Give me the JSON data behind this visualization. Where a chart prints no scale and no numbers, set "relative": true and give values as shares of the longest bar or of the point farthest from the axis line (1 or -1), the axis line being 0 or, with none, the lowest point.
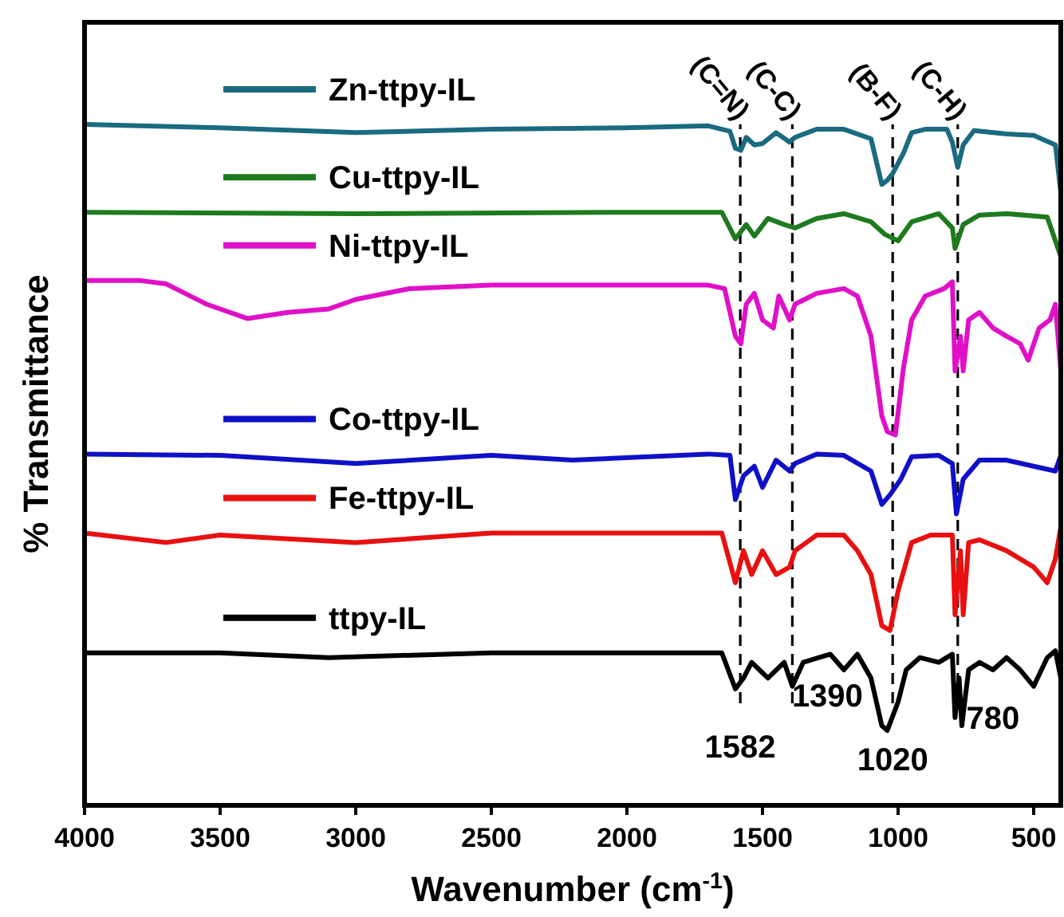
{
  "chart_data": {
    "type": "line",
    "relative": true,
    "xlabel": "Wavenumber (cm$^{-1}$)",
    "ylabel": "% Transmittance",
    "xlim": [
      4000,
      400
    ],
    "xticks": [
      4000,
      3500,
      3000,
      2500,
      2000,
      1500,
      1000,
      500
    ],
    "legend": "top left",
    "grid": false,
    "marker": "none",
    "line_style": "solid",
    "tick_labels": "x",
    "series": [
      {
        "name": "Zn-ttpy-IL",
        "color": "#1a6a80",
        "x": [
          4000,
          3500,
          3000,
          2500,
          2000,
          1700,
          1620,
          1600,
          1580,
          1560,
          1530,
          1500,
          1450,
          1400,
          1380,
          1300,
          1200,
          1100,
          1060,
          1040,
          1020,
          980,
          950,
          900,
          820,
          800,
          780,
          760,
          720,
          600,
          500,
          420,
          400
        ],
        "values": [
          1.0,
          0.995,
          0.988,
          0.993,
          0.995,
          0.998,
          0.99,
          0.965,
          0.962,
          0.981,
          0.97,
          0.972,
          0.988,
          0.974,
          0.981,
          0.993,
          0.993,
          0.979,
          0.912,
          0.918,
          0.928,
          0.958,
          0.988,
          0.993,
          0.993,
          0.974,
          0.937,
          0.97,
          0.991,
          0.986,
          0.984,
          0.97,
          0.9
        ]
      },
      {
        "name": "Cu-ttpy-IL",
        "color": "#1e7a1e",
        "x": [
          4000,
          3000,
          2000,
          1650,
          1600,
          1560,
          1530,
          1480,
          1420,
          1380,
          1300,
          1200,
          1100,
          1050,
          1000,
          950,
          850,
          800,
          790,
          760,
          700,
          600,
          450,
          400
        ],
        "values": [
          0.871,
          0.869,
          0.871,
          0.871,
          0.832,
          0.853,
          0.836,
          0.862,
          0.853,
          0.848,
          0.862,
          0.869,
          0.857,
          0.839,
          0.829,
          0.857,
          0.869,
          0.848,
          0.818,
          0.853,
          0.867,
          0.869,
          0.864,
          0.806
        ]
      },
      {
        "name": "Ni-ttpy-IL",
        "color": "#e010c8",
        "x": [
          4000,
          3800,
          3700,
          3550,
          3400,
          3250,
          3100,
          3000,
          2800,
          2500,
          2000,
          1700,
          1640,
          1600,
          1580,
          1560,
          1530,
          1500,
          1460,
          1440,
          1400,
          1380,
          1300,
          1200,
          1150,
          1100,
          1060,
          1040,
          1010,
          980,
          950,
          900,
          830,
          800,
          790,
          770,
          760,
          740,
          700,
          650,
          600,
          550,
          520,
          480,
          440,
          420,
          400
        ],
        "values": [
          0.771,
          0.771,
          0.766,
          0.736,
          0.715,
          0.724,
          0.729,
          0.743,
          0.759,
          0.764,
          0.764,
          0.764,
          0.759,
          0.689,
          0.678,
          0.736,
          0.752,
          0.713,
          0.701,
          0.748,
          0.713,
          0.736,
          0.752,
          0.759,
          0.748,
          0.689,
          0.572,
          0.549,
          0.544,
          0.643,
          0.713,
          0.748,
          0.759,
          0.769,
          0.638,
          0.689,
          0.638,
          0.713,
          0.724,
          0.701,
          0.689,
          0.678,
          0.654,
          0.701,
          0.713,
          0.736,
          0.638
        ]
      },
      {
        "name": "Co-ttpy-IL",
        "color": "#1010c8",
        "x": [
          4000,
          3500,
          3000,
          2500,
          2200,
          1700,
          1620,
          1600,
          1570,
          1530,
          1500,
          1450,
          1400,
          1380,
          1300,
          1200,
          1100,
          1060,
          1030,
          990,
          950,
          850,
          800,
          785,
          760,
          700,
          600,
          500,
          420,
          400
        ],
        "values": [
          0.516,
          0.514,
          0.502,
          0.514,
          0.507,
          0.516,
          0.514,
          0.449,
          0.484,
          0.498,
          0.467,
          0.507,
          0.491,
          0.502,
          0.516,
          0.514,
          0.491,
          0.442,
          0.456,
          0.479,
          0.512,
          0.514,
          0.502,
          0.428,
          0.479,
          0.507,
          0.507,
          0.498,
          0.491,
          0.514
        ]
      },
      {
        "name": "Fe-ttpy-IL",
        "color": "#e81010",
        "x": [
          4000,
          3700,
          3500,
          3000,
          2500,
          2000,
          1650,
          1600,
          1570,
          1540,
          1500,
          1450,
          1400,
          1380,
          1300,
          1200,
          1150,
          1100,
          1060,
          1030,
          1000,
          950,
          880,
          800,
          790,
          770,
          760,
          740,
          700,
          600,
          500,
          450,
          420,
          400
        ],
        "values": [
          0.4,
          0.386,
          0.397,
          0.386,
          0.4,
          0.4,
          0.4,
          0.327,
          0.374,
          0.339,
          0.374,
          0.339,
          0.35,
          0.374,
          0.397,
          0.397,
          0.374,
          0.339,
          0.264,
          0.257,
          0.315,
          0.386,
          0.397,
          0.397,
          0.28,
          0.374,
          0.28,
          0.386,
          0.39,
          0.374,
          0.35,
          0.327,
          0.362,
          0.409
        ]
      },
      {
        "name": "ttpy-IL",
        "color": "#000000",
        "x": [
          4000,
          3500,
          3100,
          2500,
          2000,
          1650,
          1600,
          1570,
          1540,
          1480,
          1420,
          1390,
          1350,
          1250,
          1200,
          1150,
          1100,
          1060,
          1040,
          1000,
          970,
          920,
          850,
          800,
          790,
          775,
          765,
          740,
          700,
          650,
          600,
          550,
          500,
          450,
          420,
          400
        ],
        "values": [
          0.224,
          0.224,
          0.217,
          0.224,
          0.224,
          0.224,
          0.171,
          0.187,
          0.21,
          0.187,
          0.21,
          0.175,
          0.21,
          0.222,
          0.199,
          0.222,
          0.187,
          0.117,
          0.11,
          0.152,
          0.199,
          0.217,
          0.21,
          0.222,
          0.129,
          0.187,
          0.117,
          0.199,
          0.21,
          0.199,
          0.217,
          0.199,
          0.175,
          0.217,
          0.227,
          0.187
        ]
      }
    ],
    "ref_lines": [
      {
        "axis": "x",
        "value": 1582,
        "label": "1582",
        "line_style": "dashed"
      },
      {
        "axis": "x",
        "value": 1390,
        "label": "1390",
        "line_style": "dashed"
      },
      {
        "axis": "x",
        "value": 1020,
        "label": "1020",
        "line_style": "dashed"
      },
      {
        "axis": "x",
        "value": 780,
        "label": "780",
        "line_style": "dashed"
      }
    ],
    "annotations": [
      "(C=N)",
      "(C-C)",
      "(B-F)",
      "(C-H)"
    ]
  }
}
